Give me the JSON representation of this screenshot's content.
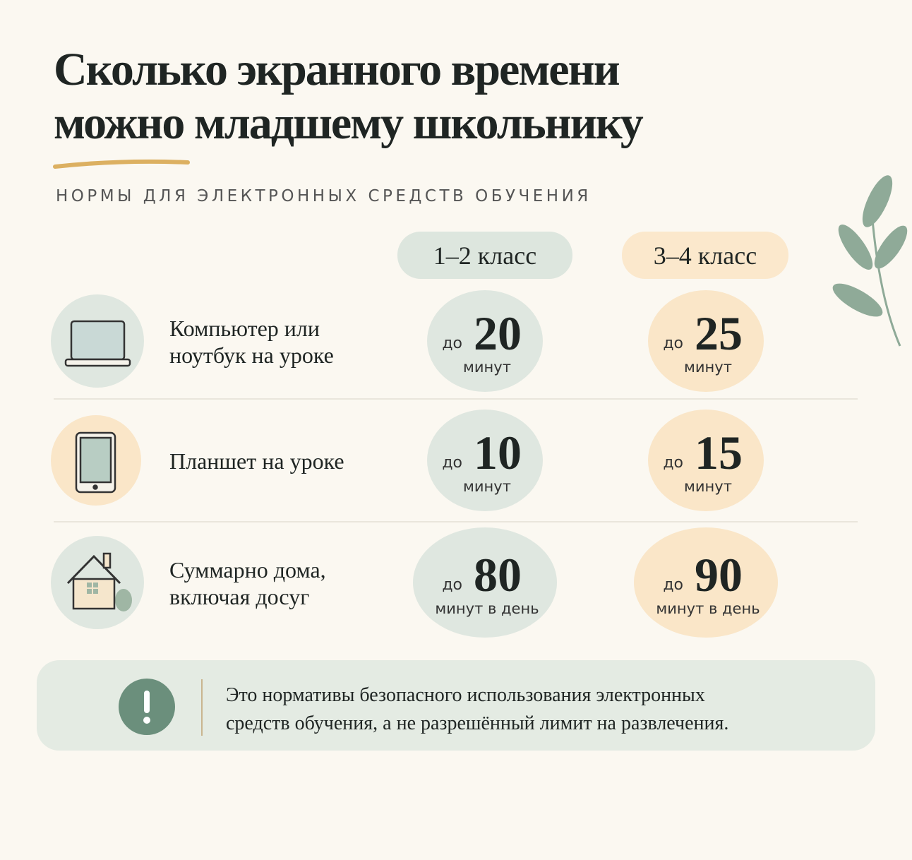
{
  "header": {
    "title_lines": [
      "Сколько экранного времени",
      "можно младшему школьнику"
    ],
    "subtitle": "НОРМЫ ДЛЯ ЭЛЕКТРОННЫХ СРЕДСТВ ОБУЧЕНИЯ"
  },
  "table": {
    "columns": [
      "1–2 класс",
      "3–4 класс"
    ],
    "rows": [
      {
        "label_lines": [
          "Компьютер или",
          "ноутбук на уроке"
        ],
        "cells": [
          {
            "prefix": "до",
            "value": 20,
            "unit": "минут"
          },
          {
            "prefix": "до",
            "value": 25,
            "unit": "минут"
          }
        ]
      },
      {
        "label_lines": [
          "Планшет на уроке"
        ],
        "cells": [
          {
            "prefix": "до",
            "value": 10,
            "unit": "минут"
          },
          {
            "prefix": "до",
            "value": 15,
            "unit": "минут"
          }
        ]
      },
      {
        "label_lines": [
          "Суммарно дома,",
          "включая досуг"
        ],
        "cells": [
          {
            "prefix": "до",
            "value": 80,
            "unit": "минут в день"
          },
          {
            "prefix": "до",
            "value": 90,
            "unit": "минут в день"
          }
        ]
      }
    ]
  },
  "note": {
    "lines": [
      "Это нормативы безопасного использования электронных",
      "средств обучения, а не разрешённый лимит на развлечения."
    ]
  }
}
